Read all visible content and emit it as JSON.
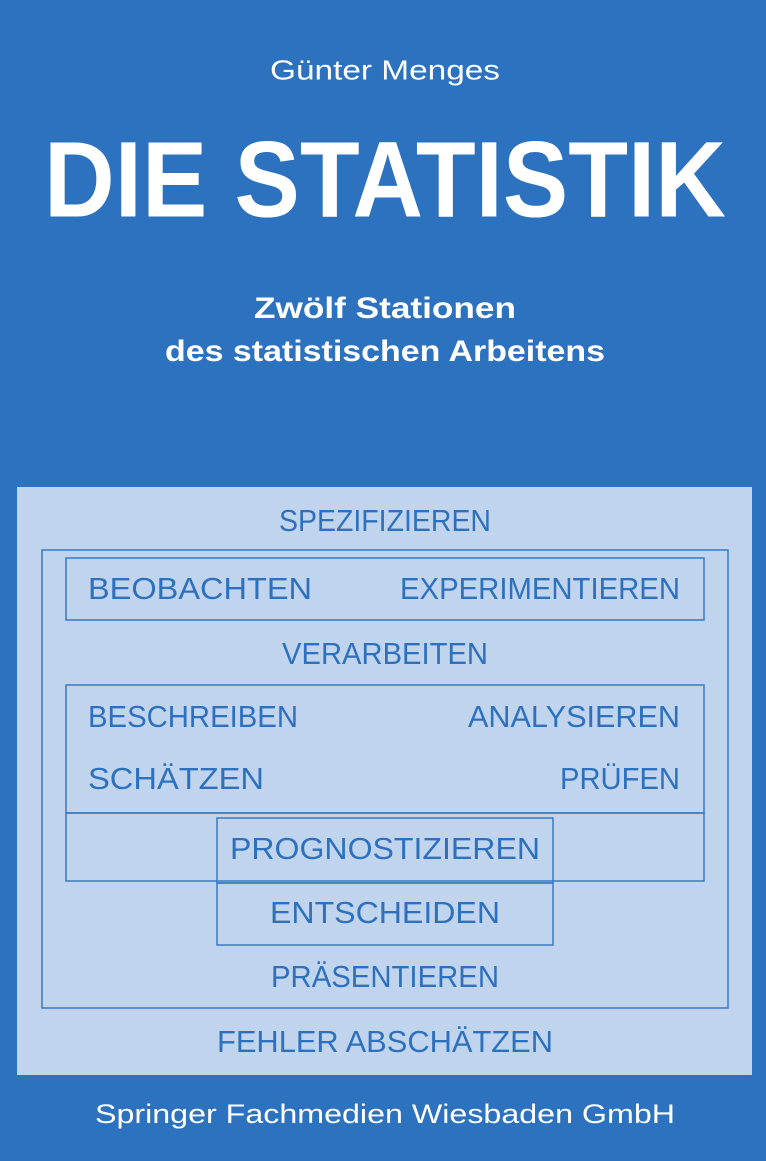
{
  "author": "Günter Menges",
  "title": "DIE STATISTIK",
  "subtitle": [
    "Zwölf Stationen",
    "des statistischen Arbeitens"
  ],
  "diagram": {
    "items": [
      "SPEZIFIZIEREN",
      "BEOBACHTEN",
      "EXPERIMENTIEREN",
      "VERARBEITEN",
      "BESCHREIBEN",
      "ANALYSIEREN",
      "SCHÄTZEN",
      "PRÜFEN",
      "PROGNOSTIZIEREN",
      "ENTSCHEIDEN",
      "PRÄSENTIEREN",
      "FEHLER ABSCHÄTZEN"
    ]
  },
  "publisher": "Springer Fachmedien Wiesbaden GmbH"
}
